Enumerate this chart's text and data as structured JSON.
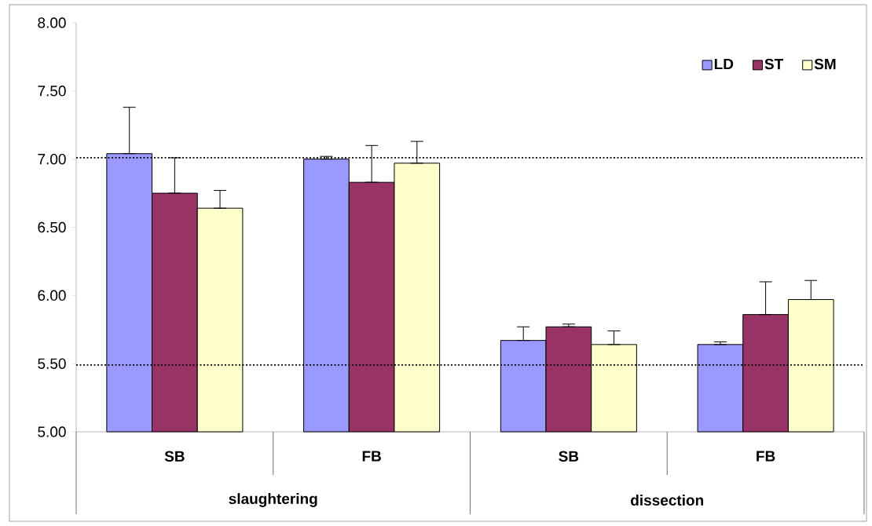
{
  "chart_data": {
    "type": "bar",
    "categories": [
      "SB",
      "FB",
      "SB",
      "FB"
    ],
    "annotations": [
      "slaughtering",
      "dissection"
    ],
    "series": [
      {
        "name": "LD",
        "color": "#9999ff",
        "values": [
          7.04,
          7.0,
          5.67,
          5.64
        ],
        "errors": [
          [
            7.04,
            7.38
          ],
          [
            7.0,
            7.02
          ],
          [
            5.67,
            5.77
          ],
          [
            5.64,
            5.66
          ]
        ]
      },
      {
        "name": "ST",
        "color": "#993366",
        "values": [
          6.75,
          6.83,
          5.77,
          5.86
        ],
        "errors": [
          [
            6.75,
            7.01
          ],
          [
            6.83,
            7.1
          ],
          [
            5.77,
            5.79
          ],
          [
            5.86,
            6.1
          ]
        ]
      },
      {
        "name": "SM",
        "color": "#ffffcc",
        "values": [
          6.64,
          6.97,
          5.64,
          5.97
        ],
        "errors": [
          [
            6.64,
            6.77
          ],
          [
            6.97,
            7.13
          ],
          [
            5.64,
            5.74
          ],
          [
            5.97,
            6.11
          ]
        ]
      }
    ],
    "ylim": [
      5,
      8
    ],
    "yticks": [
      {
        "value": 5,
        "label": "5.00"
      },
      {
        "value": 5.5,
        "label": "5.50"
      },
      {
        "value": 6,
        "label": "6.00"
      },
      {
        "value": 6.5,
        "label": "6.50"
      },
      {
        "value": 7,
        "label": "7.00"
      },
      {
        "value": 7.5,
        "label": "7.50"
      },
      {
        "value": 8,
        "label": "8.00"
      }
    ],
    "ref_lines": [
      {
        "axis": "y",
        "value": 7.01,
        "line_style": "dotted"
      },
      {
        "axis": "y",
        "value": 5.49,
        "line_style": "dotted"
      }
    ],
    "grid": false,
    "legend": "top right"
  }
}
